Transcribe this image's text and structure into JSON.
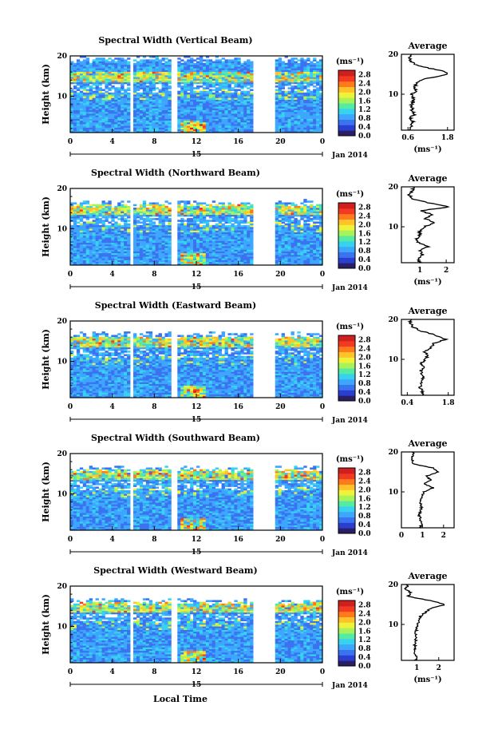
{
  "chart_data": {
    "type": "heatmap",
    "xlabel": "Local Time",
    "date_label": "Jan 2014",
    "day_label": "15",
    "x_ticks": [
      "0",
      "4",
      "8",
      "12",
      "16",
      "20",
      "0"
    ],
    "xlim": [
      0,
      24
    ],
    "ylabel": "Height (km)",
    "ylim": [
      1,
      20
    ],
    "y_ticks": [
      "10",
      "20"
    ],
    "colorbar": {
      "unit": "(ms⁻¹)",
      "ticks": [
        "2.8",
        "2.4",
        "2.0",
        "1.6",
        "1.2",
        "0.8",
        "0.4",
        "0.0"
      ],
      "range": [
        0.0,
        3.0
      ],
      "colors": [
        "#2a1f66",
        "#2a3fd0",
        "#3a73f0",
        "#3da6ff",
        "#37d3ee",
        "#56eba2",
        "#a8f35a",
        "#eef33a",
        "#ffc228",
        "#ff7a1c",
        "#f23a22",
        "#d01f1f"
      ]
    },
    "data_gaps_hours": [
      [
        5.7,
        6.1
      ],
      [
        9.7,
        10.1
      ],
      [
        17.5,
        19.5
      ]
    ],
    "panels": [
      {
        "title": "Spectral Width (Vertical Beam)",
        "profile": {
          "title": "Average",
          "xlabel": "(ms⁻¹)",
          "x_ticks": [
            "0.6",
            "1.8"
          ],
          "xlim": [
            0.4,
            2.0
          ],
          "heights": [
            1,
            2,
            3,
            4,
            5,
            6,
            7,
            8,
            9,
            10,
            11,
            12,
            13,
            14,
            15,
            16,
            17,
            18,
            19,
            20
          ],
          "values": [
            0.65,
            0.7,
            0.75,
            0.7,
            0.78,
            0.72,
            0.7,
            0.75,
            0.78,
            0.72,
            0.85,
            0.8,
            0.9,
            1.2,
            1.8,
            1.6,
            0.95,
            0.7,
            0.65,
            0.7
          ]
        }
      },
      {
        "title": "Spectral Width (Northward Beam)",
        "profile": {
          "title": "Average",
          "xlabel": "(ms⁻¹)",
          "x_ticks": [
            "1",
            "2"
          ],
          "xlim": [
            0.3,
            2.3
          ],
          "heights": [
            1,
            2,
            3,
            4,
            5,
            6,
            7,
            8,
            9,
            10,
            11,
            12,
            13,
            14,
            15,
            16,
            17,
            18,
            19,
            20
          ],
          "values": [
            1.0,
            0.95,
            1.1,
            1.0,
            1.3,
            0.95,
            0.9,
            1.0,
            1.0,
            1.15,
            1.6,
            1.2,
            1.5,
            1.0,
            2.1,
            1.3,
            0.7,
            0.6,
            0.7,
            0.8
          ]
        }
      },
      {
        "title": "Spectral Width (Eastward Beam)",
        "profile": {
          "title": "Average",
          "xlabel": "",
          "x_ticks": [
            "0.4",
            "1.8"
          ],
          "xlim": [
            0.2,
            2.0
          ],
          "heights": [
            1,
            2,
            3,
            4,
            5,
            6,
            7,
            8,
            9,
            10,
            11,
            12,
            13,
            14,
            15,
            16,
            17,
            18,
            19,
            20
          ],
          "values": [
            0.95,
            0.9,
            0.85,
            0.9,
            0.95,
            0.9,
            0.85,
            0.95,
            0.9,
            1.0,
            1.1,
            1.0,
            1.2,
            1.3,
            1.7,
            1.4,
            0.9,
            0.6,
            0.5,
            0.55
          ]
        }
      },
      {
        "title": "Spectral Width (Southward Beam)",
        "profile": {
          "title": "Average",
          "xlabel": "",
          "x_ticks": [
            "0",
            "1",
            "2"
          ],
          "xlim": [
            0.0,
            2.5
          ],
          "heights": [
            1,
            2,
            3,
            4,
            5,
            6,
            7,
            8,
            9,
            10,
            11,
            12,
            13,
            14,
            15,
            16,
            17,
            18,
            19,
            20
          ],
          "values": [
            0.9,
            0.95,
            0.9,
            0.85,
            0.9,
            0.95,
            0.9,
            0.95,
            1.0,
            1.05,
            1.5,
            1.1,
            1.4,
            1.2,
            1.8,
            1.5,
            0.6,
            0.5,
            0.55,
            0.6
          ]
        }
      },
      {
        "title": "Spectral Width (Westward Beam)",
        "profile": {
          "title": "Average",
          "xlabel": "(ms⁻¹)",
          "x_ticks": [
            "1",
            "2"
          ],
          "xlim": [
            0.3,
            2.7
          ],
          "heights": [
            1,
            2,
            3,
            4,
            5,
            6,
            7,
            8,
            9,
            10,
            11,
            12,
            13,
            14,
            15,
            16,
            17,
            18,
            19,
            20
          ],
          "values": [
            1.0,
            0.95,
            0.9,
            0.95,
            0.9,
            0.95,
            1.0,
            0.95,
            1.0,
            1.05,
            1.1,
            1.15,
            1.4,
            1.6,
            2.3,
            1.6,
            0.6,
            0.7,
            0.5,
            0.6
          ]
        }
      }
    ]
  }
}
